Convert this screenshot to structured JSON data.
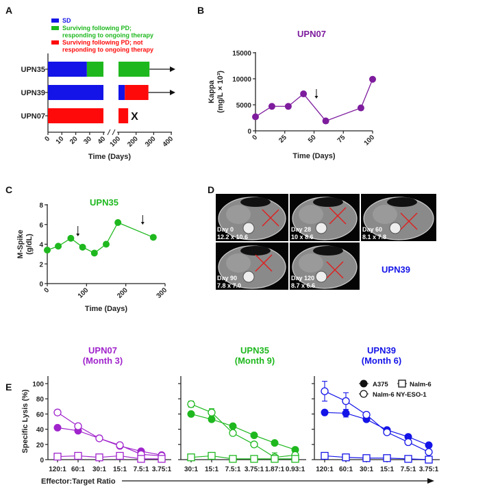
{
  "panel_letters": [
    "A",
    "B",
    "C",
    "D",
    "E"
  ],
  "colors": {
    "blue": "#1414E8",
    "green": "#1EB81E",
    "red": "#FF0A0A",
    "purple_b": "#7E1C9E",
    "purple_e": "#A024CC",
    "axis": "#222222"
  },
  "panel_d": {
    "patient": "UPN39",
    "scans": [
      {
        "day": "Day 0",
        "size": "12.2 x 10.6"
      },
      {
        "day": "Day 28",
        "size": "10 x 8.6"
      },
      {
        "day": "Day 60",
        "size": "8.1 x 7.8"
      },
      {
        "day": "Day 90",
        "size": "7.8 x 7.0"
      },
      {
        "day": "Day 120",
        "size": "8.7 x 6.6"
      }
    ]
  },
  "chart_data": [
    {
      "panel": "A",
      "type": "bar",
      "orientation": "horizontal",
      "legend": [
        {
          "label": "SD",
          "color": "#1414E8"
        },
        {
          "label": "Surviving following PD; responding to ongoing therapy",
          "lines": [
            "Surviving following PD;",
            "responding to ongoing therapy"
          ],
          "color": "#1EB81E"
        },
        {
          "label": "Surviving following PD; not responding to ongoing therapy",
          "lines": [
            "Surviving following PD; not",
            "responding to ongoing therapy"
          ],
          "color": "#FF0A0A"
        }
      ],
      "categories": [
        "UPN35",
        "UPN39",
        "UPN07"
      ],
      "segments": [
        {
          "patient": "UPN35",
          "status": "SD",
          "start": 0,
          "end": 28
        },
        {
          "patient": "UPN35",
          "status": "responding",
          "start": 28,
          "end": 276
        },
        {
          "patient": "UPN39",
          "status": "SD",
          "start": 0,
          "end": 136
        },
        {
          "patient": "UPN39",
          "status": "not responding",
          "start": 136,
          "end": 270
        },
        {
          "patient": "UPN07",
          "status": "not responding",
          "start": 0,
          "end": 155
        }
      ],
      "outcomes": {
        "UPN35": "arrow",
        "UPN39": "arrow",
        "UPN07": "X"
      },
      "outcome_mark": "X",
      "xlabel": "Time (Days)",
      "xticks": [
        "0",
        "10",
        "20",
        "30",
        "40",
        "100",
        "200",
        "300",
        "400"
      ],
      "axis_break": [
        40,
        100
      ]
    },
    {
      "panel": "B",
      "type": "line",
      "title": "UPN07",
      "xlabel": "Time (Days)",
      "ylabel": [
        "Kappa",
        "(mg/L × 10³)"
      ],
      "xlim": [
        0,
        100
      ],
      "ylim": [
        0,
        15000
      ],
      "xticks": [
        "0",
        "25",
        "50",
        "75",
        "100"
      ],
      "yticks": [
        "0",
        "5000",
        "10000",
        "15000"
      ],
      "x": [
        0,
        14,
        28,
        41,
        60,
        90,
        100
      ],
      "y": [
        2700,
        4700,
        4700,
        7100,
        1900,
        4400,
        9900
      ],
      "arrows_at_day": [
        52
      ]
    },
    {
      "panel": "C",
      "type": "line",
      "title": "UPN35",
      "xlabel": "Time (Days)",
      "ylabel": [
        "M-Spike",
        "(g/dL)"
      ],
      "xlim": [
        0,
        300
      ],
      "ylim": [
        0,
        8
      ],
      "xticks": [
        "0",
        "100",
        "200",
        "300"
      ],
      "yticks": [
        "0",
        "2",
        "4",
        "6",
        "8"
      ],
      "x": [
        0,
        28,
        60,
        90,
        120,
        150,
        180,
        270
      ],
      "y": [
        3.4,
        3.8,
        4.6,
        3.7,
        3.1,
        4.0,
        6.2,
        4.7
      ],
      "arrows_at_day": [
        78,
        243
      ]
    },
    {
      "panel": "E",
      "type": "line",
      "title": "UPN07",
      "subtitle": "(Month 3)",
      "ylabel": "Specific Lysis (%)",
      "xlabel": "Effector:Target Ratio",
      "ylim": [
        0,
        110
      ],
      "yticks": [
        "0",
        "20",
        "40",
        "60",
        "80",
        "100"
      ],
      "categories": [
        "120:1",
        "60:1",
        "30:1",
        "15:1",
        "7.5:1",
        "3.75:1"
      ],
      "series": [
        {
          "name": "A375",
          "marker": "filled-circle",
          "values": [
            42,
            38,
            28,
            18,
            11,
            6
          ]
        },
        {
          "name": "Nalm-6 NY-ESO-1",
          "marker": "open-circle",
          "values": [
            62,
            44,
            28,
            19,
            7,
            5
          ]
        },
        {
          "name": "Nalm-6",
          "marker": "open-square",
          "values": [
            4,
            5,
            3,
            5,
            1,
            1
          ]
        }
      ]
    },
    {
      "panel": "E",
      "type": "line",
      "title": "UPN35",
      "subtitle": "(Month 9)",
      "ylim": [
        0,
        110
      ],
      "categories": [
        "30:1",
        "15:1",
        "7.5:1",
        "3.75:1",
        "1.87:1",
        "0.93:1"
      ],
      "series": [
        {
          "name": "A375",
          "marker": "filled-circle",
          "values": [
            60,
            53,
            44,
            32,
            22,
            13
          ]
        },
        {
          "name": "Nalm-6 NY-ESO-1",
          "marker": "open-circle",
          "values": [
            73,
            62,
            35,
            20,
            3,
            6
          ],
          "errors": [
            4,
            5,
            0,
            0,
            6,
            0
          ]
        },
        {
          "name": "Nalm-6",
          "marker": "open-square",
          "values": [
            3,
            5,
            1,
            1,
            1,
            1
          ]
        }
      ]
    },
    {
      "panel": "E",
      "type": "line",
      "title": "UPN39",
      "subtitle": "(Month 6)",
      "ylim": [
        0,
        110
      ],
      "categories": [
        "120:1",
        "60:1",
        "30:1",
        "15:1",
        "7.5:1",
        "3.75:1"
      ],
      "legend": [
        "A375",
        "Nalm-6",
        "Nalm-6 NY-ESO-1"
      ],
      "series": [
        {
          "name": "A375",
          "marker": "filled-circle",
          "values": [
            62,
            61,
            53,
            39,
            30,
            19
          ],
          "errors": [
            0,
            5,
            0,
            0,
            0,
            0
          ]
        },
        {
          "name": "Nalm-6 NY-ESO-1",
          "marker": "open-circle",
          "values": [
            90,
            77,
            59,
            36,
            23,
            10
          ],
          "errors": [
            13,
            11,
            0,
            0,
            0,
            0
          ]
        },
        {
          "name": "Nalm-6",
          "marker": "open-square",
          "values": [
            5,
            3,
            2,
            2,
            1,
            0
          ]
        }
      ]
    }
  ]
}
